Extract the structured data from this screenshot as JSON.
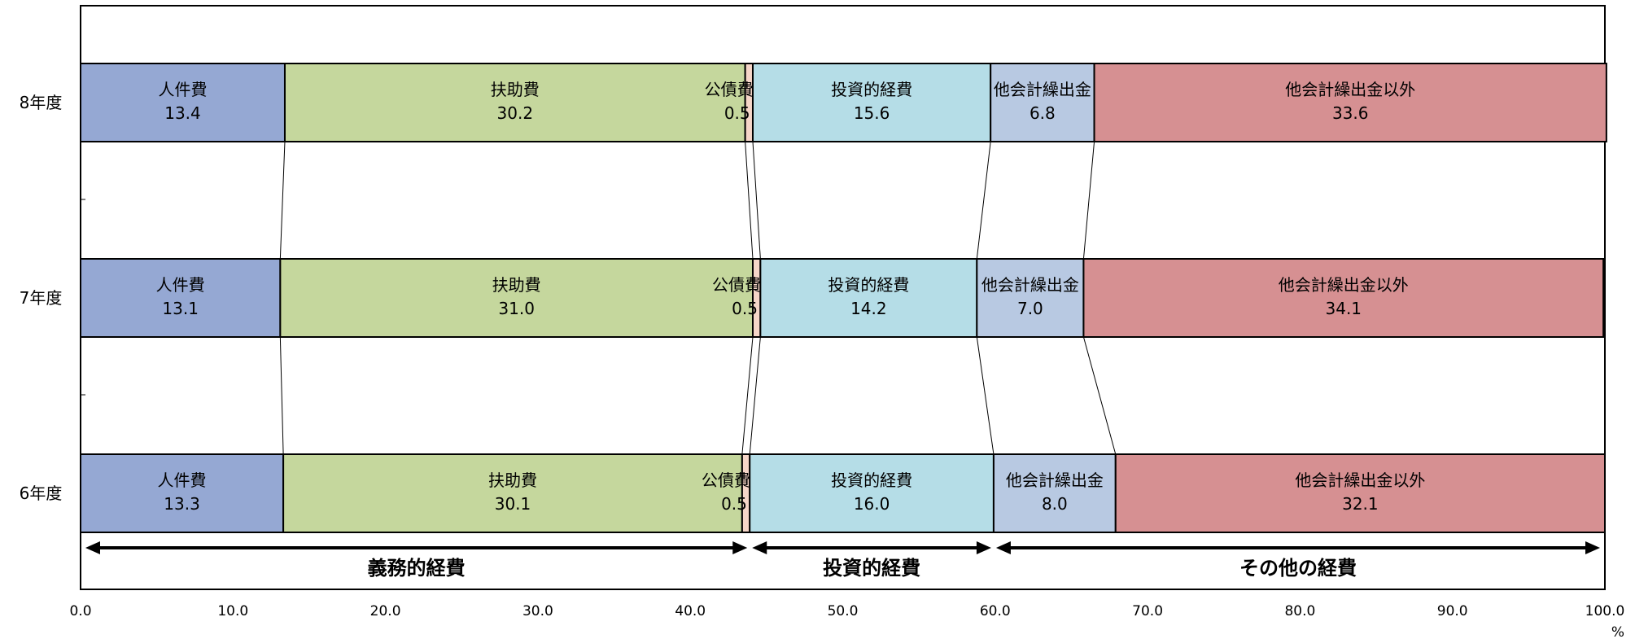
{
  "chart_data": {
    "type": "bar",
    "orientation": "horizontal",
    "stacked": "100%",
    "categories": [
      "8年度",
      "7年度",
      "6年度"
    ],
    "series": [
      {
        "name": "人件費",
        "values": [
          13.4,
          13.1,
          13.3
        ],
        "color": "#95a8d3"
      },
      {
        "name": "扶助費",
        "values": [
          30.2,
          31.0,
          30.1
        ],
        "color": "#c5d79d"
      },
      {
        "name": "公債費",
        "values": [
          0.5,
          0.5,
          0.5
        ],
        "color": "#f5d5c8"
      },
      {
        "name": "投資的経費",
        "values": [
          15.6,
          14.2,
          16.0
        ],
        "color": "#b5dde7"
      },
      {
        "name": "他会計繰出金",
        "values": [
          6.8,
          7.0,
          8.0
        ],
        "color": "#b8c9e2"
      },
      {
        "name": "他会計繰出金以外",
        "values": [
          33.6,
          34.1,
          32.1
        ],
        "color": "#d69092"
      }
    ],
    "xlim": [
      0,
      100
    ],
    "xticks": [
      "0.0",
      "10.0",
      "20.0",
      "30.0",
      "40.0",
      "50.0",
      "60.0",
      "70.0",
      "80.0",
      "90.0",
      "100.0"
    ],
    "xlabel": "%",
    "groups": [
      {
        "label": "義務的経費",
        "from_series": 0,
        "to_series": 2
      },
      {
        "label": "投資的経費",
        "from_series": 3,
        "to_series": 3
      },
      {
        "label": "その他の経費",
        "from_series": 4,
        "to_series": 5
      }
    ]
  }
}
